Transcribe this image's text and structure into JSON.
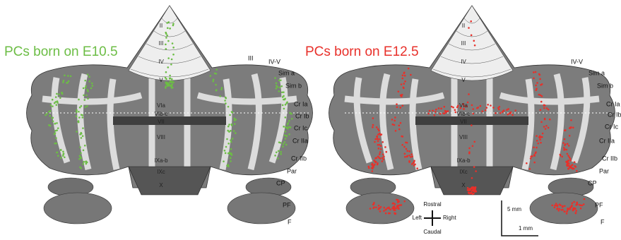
{
  "panels": [
    {
      "title": "PCs born on E10.5",
      "color": "#6cbd45",
      "vermis_labels": [
        "II",
        "III",
        "IV",
        "V",
        "VIa",
        "VIb-c",
        "VII",
        "VIII",
        "IXa-b",
        "IXc",
        "X"
      ],
      "side_labels": [
        "III",
        "IV-V",
        "Sim a",
        "Sim b",
        "Cr Ia",
        "Cr Ib",
        "Cr Ic",
        "Cr IIa",
        "Cr IIb",
        "Par",
        "CP",
        "PF",
        "F"
      ]
    },
    {
      "title": "PCs born on E12.5",
      "color": "#e8302a",
      "vermis_labels": [
        "II",
        "III",
        "IV",
        "V",
        "VIa",
        "VIb-c",
        "VII",
        "VIII",
        "IXa-b",
        "IXc",
        "X"
      ],
      "side_labels": [
        "IV-V",
        "Sim a",
        "Sim b",
        "Cr Ia",
        "Cr Ib",
        "Cr Ic",
        "Cr IIa",
        "Cr IIb",
        "Par",
        "CP",
        "PF",
        "F"
      ]
    }
  ],
  "compass": {
    "up": "Rostral",
    "down": "Caudal",
    "left": "Left",
    "right": "Right"
  },
  "scale": {
    "vertical": "5 mm",
    "horizontal": "1 mm"
  }
}
